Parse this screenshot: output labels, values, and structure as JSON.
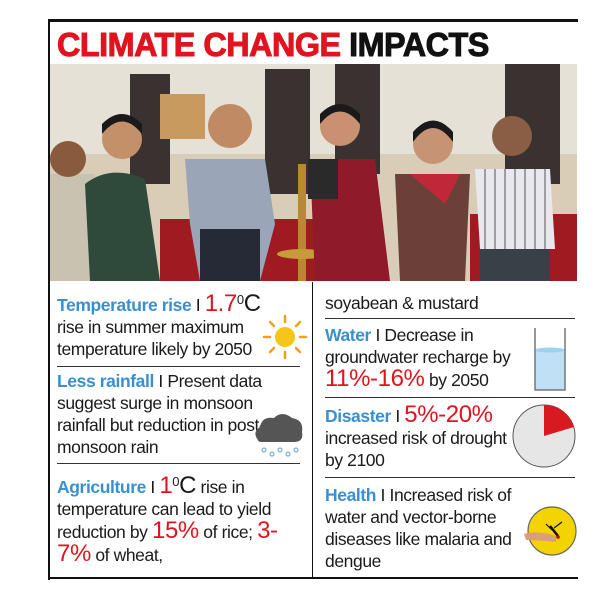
{
  "title": {
    "part1": "CLIMATE CHANGE",
    "part2": "IMPACTS"
  },
  "sections": {
    "temperature": {
      "heading": "Temperature rise",
      "sep": " I ",
      "value": "1.7",
      "unit": "0",
      "unit_c": "C",
      "text": "rise in summer maximum temperature likely by 2050"
    },
    "rainfall": {
      "heading": "Less rainfall",
      "sep": " I ",
      "text": "Present data suggest surge in monsoon rainfall but reduction in post-monsoon rain"
    },
    "agriculture": {
      "heading": "Agriculture",
      "sep": " I ",
      "value": "1",
      "unit": "0",
      "unit_c": "C",
      "text1": " rise in temperature can lead to yield reduction by ",
      "value2": "15%",
      "text2": " of rice; ",
      "value3": "3-7%",
      "text3": " of wheat,",
      "text4": "soyabean & mustard"
    },
    "water": {
      "heading": "Water",
      "sep": " I ",
      "text": "Decrease in groundwater recharge by",
      "value": "11%-16%",
      "text2": " by 2050"
    },
    "disaster": {
      "heading": "Disaster",
      "sep": " I ",
      "value": "5%-20%",
      "text": "increased risk of drought by 2100"
    },
    "health": {
      "heading": "Health",
      "sep": " I ",
      "text": "Increased risk of water and vector-borne diseases like malaria and dengue"
    }
  },
  "colors": {
    "accent_red": "#e0141e",
    "heading_blue": "#3a8fd0",
    "sun": "#f5c518"
  }
}
